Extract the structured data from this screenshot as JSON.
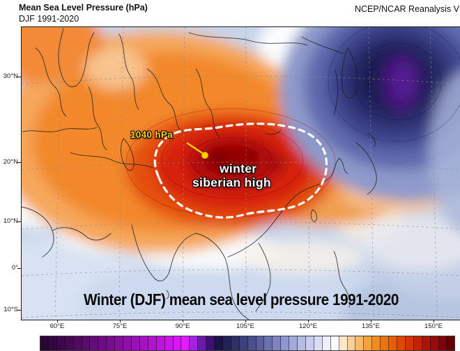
{
  "header": {
    "title": "Mean Sea Level Pressure (hPa)",
    "subtitle": "DJF 1991-2020",
    "source": "NCEP/NCAR Reanalysis V"
  },
  "map": {
    "caption": "Winter (DJF) mean sea level pressure 1991-2020",
    "annotations": {
      "pressure_value": "1040 hPa",
      "high_label_line1": "winter",
      "high_label_line2": "siberian high"
    }
  },
  "axes": {
    "lat_ticks": [
      "30°N",
      "20°N",
      "10°N",
      "0°",
      "10°S"
    ],
    "lon_ticks": [
      "60°E",
      "75°E",
      "90°E",
      "105°E",
      "120°E",
      "135°E",
      "150°E"
    ]
  },
  "colors": {
    "annotation_yellow": "#ffd400",
    "annotation_white": "#ffffff",
    "high_core_red": "#970404",
    "low_core_purple": "#45187c",
    "ocean_light_blue": "#c7d5ea",
    "orange_field": "#f2882c"
  },
  "colorbar": {
    "colors": [
      "#290633",
      "#33073e",
      "#3d0849",
      "#460954",
      "#500a60",
      "#5a0b6b",
      "#640c77",
      "#6e0d83",
      "#780e8f",
      "#830f9b",
      "#8e10a8",
      "#9911b5",
      "#a512c2",
      "#b113d0",
      "#bd14dd",
      "#ca15eb",
      "#d816f8",
      "#e21cff",
      "#a422e0",
      "#6c1ba8",
      "#3b1272",
      "#191349",
      "#232257",
      "#2e3168",
      "#3a417c",
      "#48508e",
      "#58609f",
      "#6971af",
      "#7b84be",
      "#8e97cb",
      "#a1aad8",
      "#b4bce4",
      "#c7cdee",
      "#dadef5",
      "#ecf0fa",
      "#fafbfe",
      "#fce7c9",
      "#f9d09b",
      "#f6b96d",
      "#f3a242",
      "#f08b1d",
      "#ec740c",
      "#e55e05",
      "#dc4903",
      "#d03503",
      "#c02405",
      "#ad1607",
      "#970b08",
      "#7f0305",
      "#650002"
    ]
  }
}
